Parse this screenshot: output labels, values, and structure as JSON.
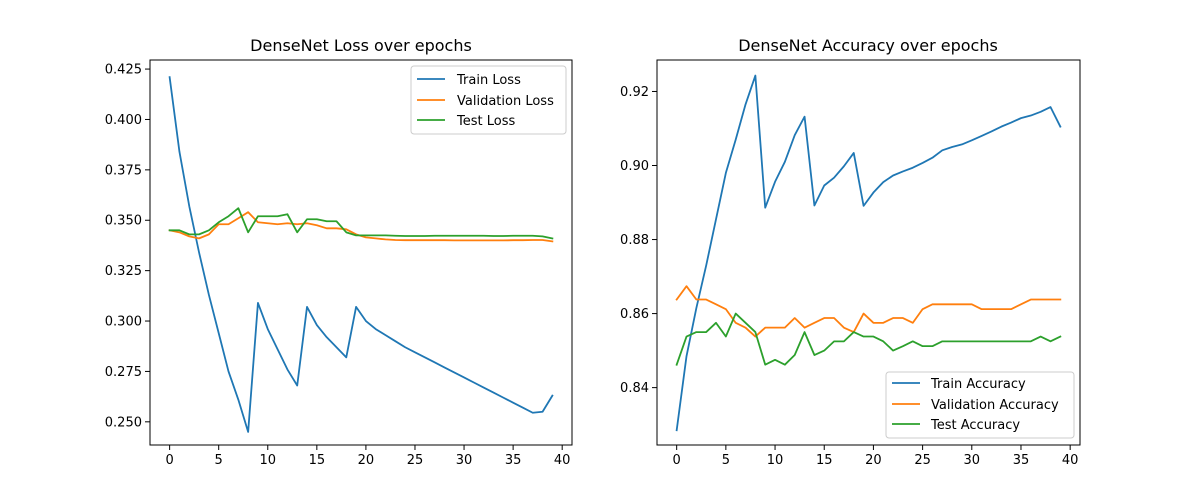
{
  "chart_data": [
    {
      "type": "line",
      "title": "DenseNet Loss over epochs",
      "xlim": [
        -2,
        41
      ],
      "ylim": [
        0.2385,
        0.4295
      ],
      "xticks": [
        0,
        5,
        10,
        15,
        20,
        25,
        30,
        35,
        40
      ],
      "yticks": [
        0.25,
        0.275,
        0.3,
        0.325,
        0.35,
        0.375,
        0.4,
        0.425
      ],
      "ytick_labels": [
        "0.250",
        "0.275",
        "0.300",
        "0.325",
        "0.350",
        "0.375",
        "0.400",
        "0.425"
      ],
      "legend": "top-right",
      "x": [
        0,
        1,
        2,
        3,
        4,
        5,
        6,
        7,
        8,
        9,
        10,
        11,
        12,
        13,
        14,
        15,
        16,
        17,
        18,
        19,
        20,
        21,
        22,
        23,
        24,
        25,
        26,
        27,
        28,
        29,
        30,
        31,
        32,
        33,
        34,
        35,
        36,
        37,
        38,
        39
      ],
      "series": [
        {
          "name": "Train Loss",
          "color": "#1f77b4",
          "values": [
            0.421,
            0.384,
            0.357,
            0.334,
            0.313,
            0.294,
            0.275,
            0.261,
            0.245,
            0.309,
            0.296,
            0.286,
            0.276,
            0.268,
            0.307,
            0.298,
            0.292,
            0.287,
            0.282,
            0.307,
            0.3,
            0.296,
            0.293,
            0.29,
            0.287,
            0.2845,
            0.282,
            0.2795,
            0.277,
            0.2745,
            0.272,
            0.2695,
            0.267,
            0.2645,
            0.262,
            0.2595,
            0.257,
            0.2545,
            0.255,
            0.263
          ]
        },
        {
          "name": "Validation Loss",
          "color": "#ff7f0e",
          "values": [
            0.345,
            0.344,
            0.342,
            0.341,
            0.343,
            0.348,
            0.348,
            0.351,
            0.354,
            0.349,
            0.3485,
            0.348,
            0.3485,
            0.348,
            0.3485,
            0.3475,
            0.346,
            0.346,
            0.3455,
            0.343,
            0.3415,
            0.341,
            0.3405,
            0.3402,
            0.3401,
            0.3401,
            0.3401,
            0.3401,
            0.3401,
            0.34,
            0.34,
            0.34,
            0.34,
            0.34,
            0.34,
            0.3401,
            0.3401,
            0.3402,
            0.3402,
            0.3395
          ]
        },
        {
          "name": "Test Loss",
          "color": "#2ca02c",
          "values": [
            0.345,
            0.345,
            0.343,
            0.343,
            0.345,
            0.349,
            0.352,
            0.356,
            0.344,
            0.352,
            0.352,
            0.352,
            0.353,
            0.344,
            0.3505,
            0.3505,
            0.3495,
            0.3495,
            0.344,
            0.3425,
            0.3425,
            0.3425,
            0.3425,
            0.3423,
            0.3422,
            0.3422,
            0.3422,
            0.3423,
            0.3423,
            0.3423,
            0.3423,
            0.3423,
            0.3423,
            0.3422,
            0.3422,
            0.3423,
            0.3423,
            0.3423,
            0.342,
            0.341
          ]
        }
      ]
    },
    {
      "type": "line",
      "title": "DenseNet Accuracy over epochs",
      "xlim": [
        -2,
        41
      ],
      "ylim": [
        0.8245,
        0.9285
      ],
      "xticks": [
        0,
        5,
        10,
        15,
        20,
        25,
        30,
        35,
        40
      ],
      "yticks": [
        0.84,
        0.86,
        0.88,
        0.9,
        0.92
      ],
      "ytick_labels": [
        "0.84",
        "0.86",
        "0.88",
        "0.90",
        "0.92"
      ],
      "legend": "bottom-right",
      "x": [
        0,
        1,
        2,
        3,
        4,
        5,
        6,
        7,
        8,
        9,
        10,
        11,
        12,
        13,
        14,
        15,
        16,
        17,
        18,
        19,
        20,
        21,
        22,
        23,
        24,
        25,
        26,
        27,
        28,
        29,
        30,
        31,
        32,
        33,
        34,
        35,
        36,
        37,
        38,
        39
      ],
      "series": [
        {
          "name": "Train Accuracy",
          "color": "#1f77b4",
          "values": [
            0.8285,
            0.8485,
            0.8615,
            0.873,
            0.8855,
            0.898,
            0.907,
            0.9165,
            0.9243,
            0.8886,
            0.8956,
            0.901,
            0.9082,
            0.9132,
            0.8892,
            0.8946,
            0.8967,
            0.8998,
            0.9034,
            0.8891,
            0.8927,
            0.8955,
            0.8973,
            0.8984,
            0.8994,
            0.9007,
            0.9021,
            0.9041,
            0.905,
            0.9057,
            0.9068,
            0.908,
            0.9092,
            0.9105,
            0.9116,
            0.9128,
            0.9135,
            0.9145,
            0.9158,
            0.9105
          ]
        },
        {
          "name": "Validation Accuracy",
          "color": "#ff7f0e",
          "values": [
            0.8638,
            0.8674,
            0.8638,
            0.8638,
            0.8625,
            0.8612,
            0.8575,
            0.8562,
            0.8538,
            0.8562,
            0.8562,
            0.8562,
            0.8588,
            0.8562,
            0.8575,
            0.8588,
            0.8588,
            0.8562,
            0.855,
            0.86,
            0.8575,
            0.8575,
            0.8588,
            0.8588,
            0.8575,
            0.8612,
            0.8625,
            0.8625,
            0.8625,
            0.8625,
            0.8625,
            0.8612,
            0.8612,
            0.8612,
            0.8612,
            0.8625,
            0.8638,
            0.8638,
            0.8638,
            0.8638
          ]
        },
        {
          "name": "Test Accuracy",
          "color": "#2ca02c",
          "values": [
            0.8462,
            0.8538,
            0.855,
            0.855,
            0.8575,
            0.8538,
            0.86,
            0.8575,
            0.855,
            0.8462,
            0.8475,
            0.8462,
            0.8488,
            0.855,
            0.8488,
            0.85,
            0.8525,
            0.8525,
            0.855,
            0.8538,
            0.8538,
            0.8525,
            0.85,
            0.8512,
            0.8525,
            0.8512,
            0.8512,
            0.8525,
            0.8525,
            0.8525,
            0.8525,
            0.8525,
            0.8525,
            0.8525,
            0.8525,
            0.8525,
            0.8525,
            0.8538,
            0.8525,
            0.8538
          ]
        }
      ]
    }
  ]
}
